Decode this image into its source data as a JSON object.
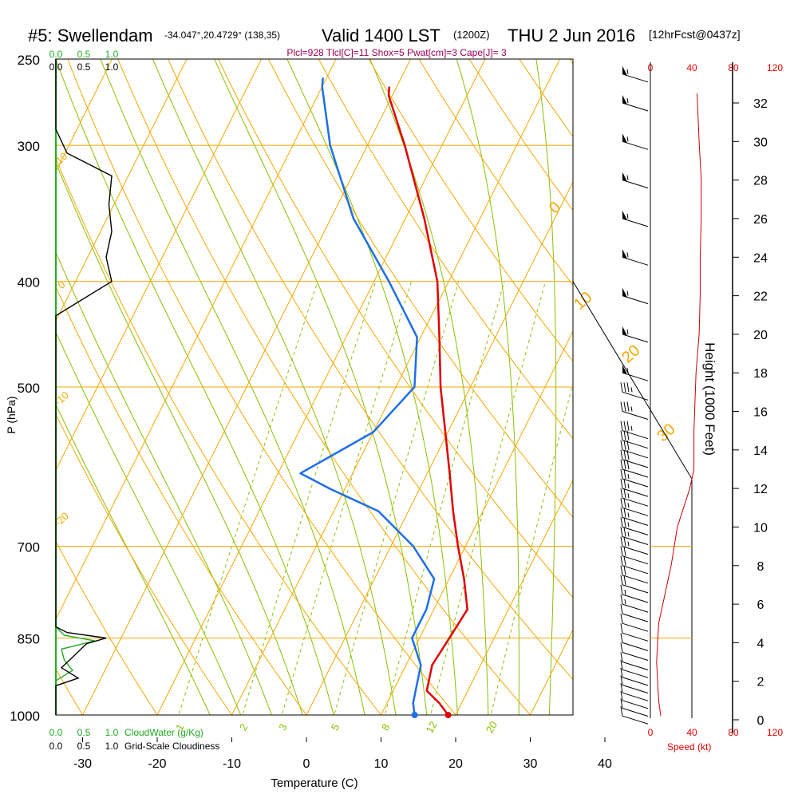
{
  "header": {
    "station": "#5: Swellendam",
    "coords": "-34.047°,20.4729° (138,35)",
    "valid": "Valid 1400 LST",
    "zulu": "(1200Z)",
    "date": "THU 2 Jun 2016",
    "forecast": "[12hrFcst@0437z]",
    "indices": "Plcl=928 Tlcl[C]=11 Shox=5 Pwat[cm]=3 Cape[J]= 3"
  },
  "colors": {
    "isotherm": "#f5a800",
    "dry_adiabat": "#f5a800",
    "moist_adiabat": "#88c000",
    "mixing_ratio": "#88c000",
    "temperature": "#e00000",
    "dewpoint": "#1e6fe8",
    "cloudwater": "#22aa22",
    "indices": "#990055",
    "speed": "#ee0000"
  },
  "chart_data": {
    "type": "line",
    "title": "Skew-T log-P sounding",
    "xlabel": "Temperature (C)",
    "ylabel": "P (hPa)",
    "pressure_ticks": [
      "250",
      "300",
      "400",
      "500",
      "700",
      "850",
      "1000"
    ],
    "temp_ticks": [
      "-30",
      "-20",
      "-10",
      "0",
      "10",
      "20",
      "30",
      "40"
    ],
    "skewed_isotherm_labels": [
      "0",
      "10",
      "20",
      "30",
      "-10",
      "-20",
      "10",
      "0"
    ],
    "mixing_ratio_labels": [
      "1",
      "2",
      "3",
      "5",
      "8",
      "12",
      "20"
    ],
    "height_axis": {
      "label": "Height (1000 Feet)",
      "ticks": [
        "0",
        "2",
        "4",
        "6",
        "8",
        "10",
        "12",
        "14",
        "16",
        "18",
        "20",
        "22",
        "24",
        "26",
        "28",
        "30",
        "32"
      ]
    },
    "cloud_scales": {
      "cloudwater_ticks": [
        "0.0",
        "0.5",
        "1.0"
      ],
      "cloudwater_label": "CloudWater (g/Kg)",
      "cloudiness_ticks": [
        "0.0",
        "0.5",
        "1.0"
      ],
      "cloudiness_label": "Grid-Scale Cloudiness"
    },
    "wind_speed_axis": {
      "ticks": [
        "0",
        "40",
        "80",
        "120"
      ],
      "label": "Speed (kt)"
    },
    "series": [
      {
        "name": "Temperature",
        "points": [
          [
            1000,
            19
          ],
          [
            975,
            17
          ],
          [
            950,
            14.5
          ],
          [
            900,
            13.5
          ],
          [
            850,
            14
          ],
          [
            800,
            14.5
          ],
          [
            750,
            12
          ],
          [
            700,
            9
          ],
          [
            650,
            6
          ],
          [
            600,
            3
          ],
          [
            500,
            -4
          ],
          [
            450,
            -7.5
          ],
          [
            400,
            -11.5
          ],
          [
            350,
            -17.5
          ],
          [
            300,
            -25
          ],
          [
            270,
            -30.5
          ],
          [
            265,
            -31
          ]
        ]
      },
      {
        "name": "Dewpoint",
        "points": [
          [
            1000,
            14.5
          ],
          [
            975,
            13.5
          ],
          [
            950,
            13
          ],
          [
            900,
            12
          ],
          [
            850,
            9
          ],
          [
            800,
            9
          ],
          [
            750,
            8
          ],
          [
            700,
            3
          ],
          [
            650,
            -4
          ],
          [
            620,
            -12
          ],
          [
            600,
            -17
          ],
          [
            550,
            -10
          ],
          [
            500,
            -7.5
          ],
          [
            450,
            -10.5
          ],
          [
            400,
            -18
          ],
          [
            350,
            -27
          ],
          [
            300,
            -35
          ],
          [
            265,
            -40
          ],
          [
            260,
            -40.5
          ]
        ]
      }
    ],
    "cloudwater_profile": [
      [
        1000,
        0
      ],
      [
        930,
        0
      ],
      [
        910,
        0.3
      ],
      [
        890,
        0.15
      ],
      [
        870,
        0.1
      ],
      [
        855,
        0.7
      ],
      [
        845,
        0.15
      ],
      [
        830,
        0
      ],
      [
        250,
        0
      ]
    ],
    "cloudiness_profile": [
      [
        1000,
        0
      ],
      [
        940,
        0
      ],
      [
        925,
        0.4
      ],
      [
        905,
        0.1
      ],
      [
        890,
        0.25
      ],
      [
        860,
        0.55
      ],
      [
        850,
        0.9
      ],
      [
        840,
        0.2
      ],
      [
        830,
        0
      ],
      [
        430,
        0
      ],
      [
        400,
        1.0
      ],
      [
        380,
        0.9
      ],
      [
        360,
        1.0
      ],
      [
        340,
        0.95
      ],
      [
        320,
        1.0
      ],
      [
        305,
        0.2
      ],
      [
        290,
        0
      ],
      [
        250,
        0
      ]
    ],
    "wind_speed_profile": [
      [
        0.2,
        10
      ],
      [
        1,
        8
      ],
      [
        2,
        7
      ],
      [
        3,
        6
      ],
      [
        4,
        7
      ],
      [
        5,
        8
      ],
      [
        6,
        12
      ],
      [
        7,
        16
      ],
      [
        8,
        20
      ],
      [
        10,
        26
      ],
      [
        12,
        38
      ],
      [
        13,
        42
      ],
      [
        15,
        42
      ],
      [
        18,
        44
      ],
      [
        20,
        47
      ],
      [
        22,
        48
      ],
      [
        24,
        48
      ],
      [
        26,
        49
      ],
      [
        28,
        49
      ],
      [
        30,
        47
      ],
      [
        32.5,
        45
      ]
    ],
    "wind_barbs": [
      {
        "h": 0.2,
        "kt": 10
      },
      {
        "h": 0.6,
        "kt": 10
      },
      {
        "h": 1.0,
        "kt": 10
      },
      {
        "h": 1.4,
        "kt": 10
      },
      {
        "h": 1.8,
        "kt": 10
      },
      {
        "h": 2.2,
        "kt": 10
      },
      {
        "h": 2.6,
        "kt": 10
      },
      {
        "h": 3.0,
        "kt": 10
      },
      {
        "h": 3.5,
        "kt": 10
      },
      {
        "h": 4.0,
        "kt": 10
      },
      {
        "h": 4.5,
        "kt": 10
      },
      {
        "h": 5.0,
        "kt": 10
      },
      {
        "h": 5.5,
        "kt": 10
      },
      {
        "h": 6.0,
        "kt": 15
      },
      {
        "h": 6.5,
        "kt": 15
      },
      {
        "h": 7.0,
        "kt": 20
      },
      {
        "h": 7.5,
        "kt": 20
      },
      {
        "h": 8.0,
        "kt": 20
      },
      {
        "h": 8.5,
        "kt": 20
      },
      {
        "h": 9.0,
        "kt": 25
      },
      {
        "h": 9.5,
        "kt": 25
      },
      {
        "h": 10.0,
        "kt": 25
      },
      {
        "h": 10.5,
        "kt": 25
      },
      {
        "h": 11.0,
        "kt": 25
      },
      {
        "h": 11.5,
        "kt": 25
      },
      {
        "h": 12.0,
        "kt": 25
      },
      {
        "h": 12.5,
        "kt": 25
      },
      {
        "h": 13.0,
        "kt": 30
      },
      {
        "h": 13.5,
        "kt": 30
      },
      {
        "h": 14.0,
        "kt": 30
      },
      {
        "h": 14.5,
        "kt": 30
      },
      {
        "h": 15.0,
        "kt": 35
      },
      {
        "h": 16.0,
        "kt": 35
      },
      {
        "h": 17.0,
        "kt": 35
      },
      {
        "h": 18.0,
        "kt": 55
      },
      {
        "h": 20.0,
        "kt": 55
      },
      {
        "h": 22.0,
        "kt": 55
      },
      {
        "h": 24.0,
        "kt": 55
      },
      {
        "h": 26.0,
        "kt": 55
      },
      {
        "h": 28.0,
        "kt": 55
      },
      {
        "h": 30.0,
        "kt": 55
      },
      {
        "h": 32.0,
        "kt": 55
      },
      {
        "h": 33.5,
        "kt": 55
      }
    ]
  }
}
